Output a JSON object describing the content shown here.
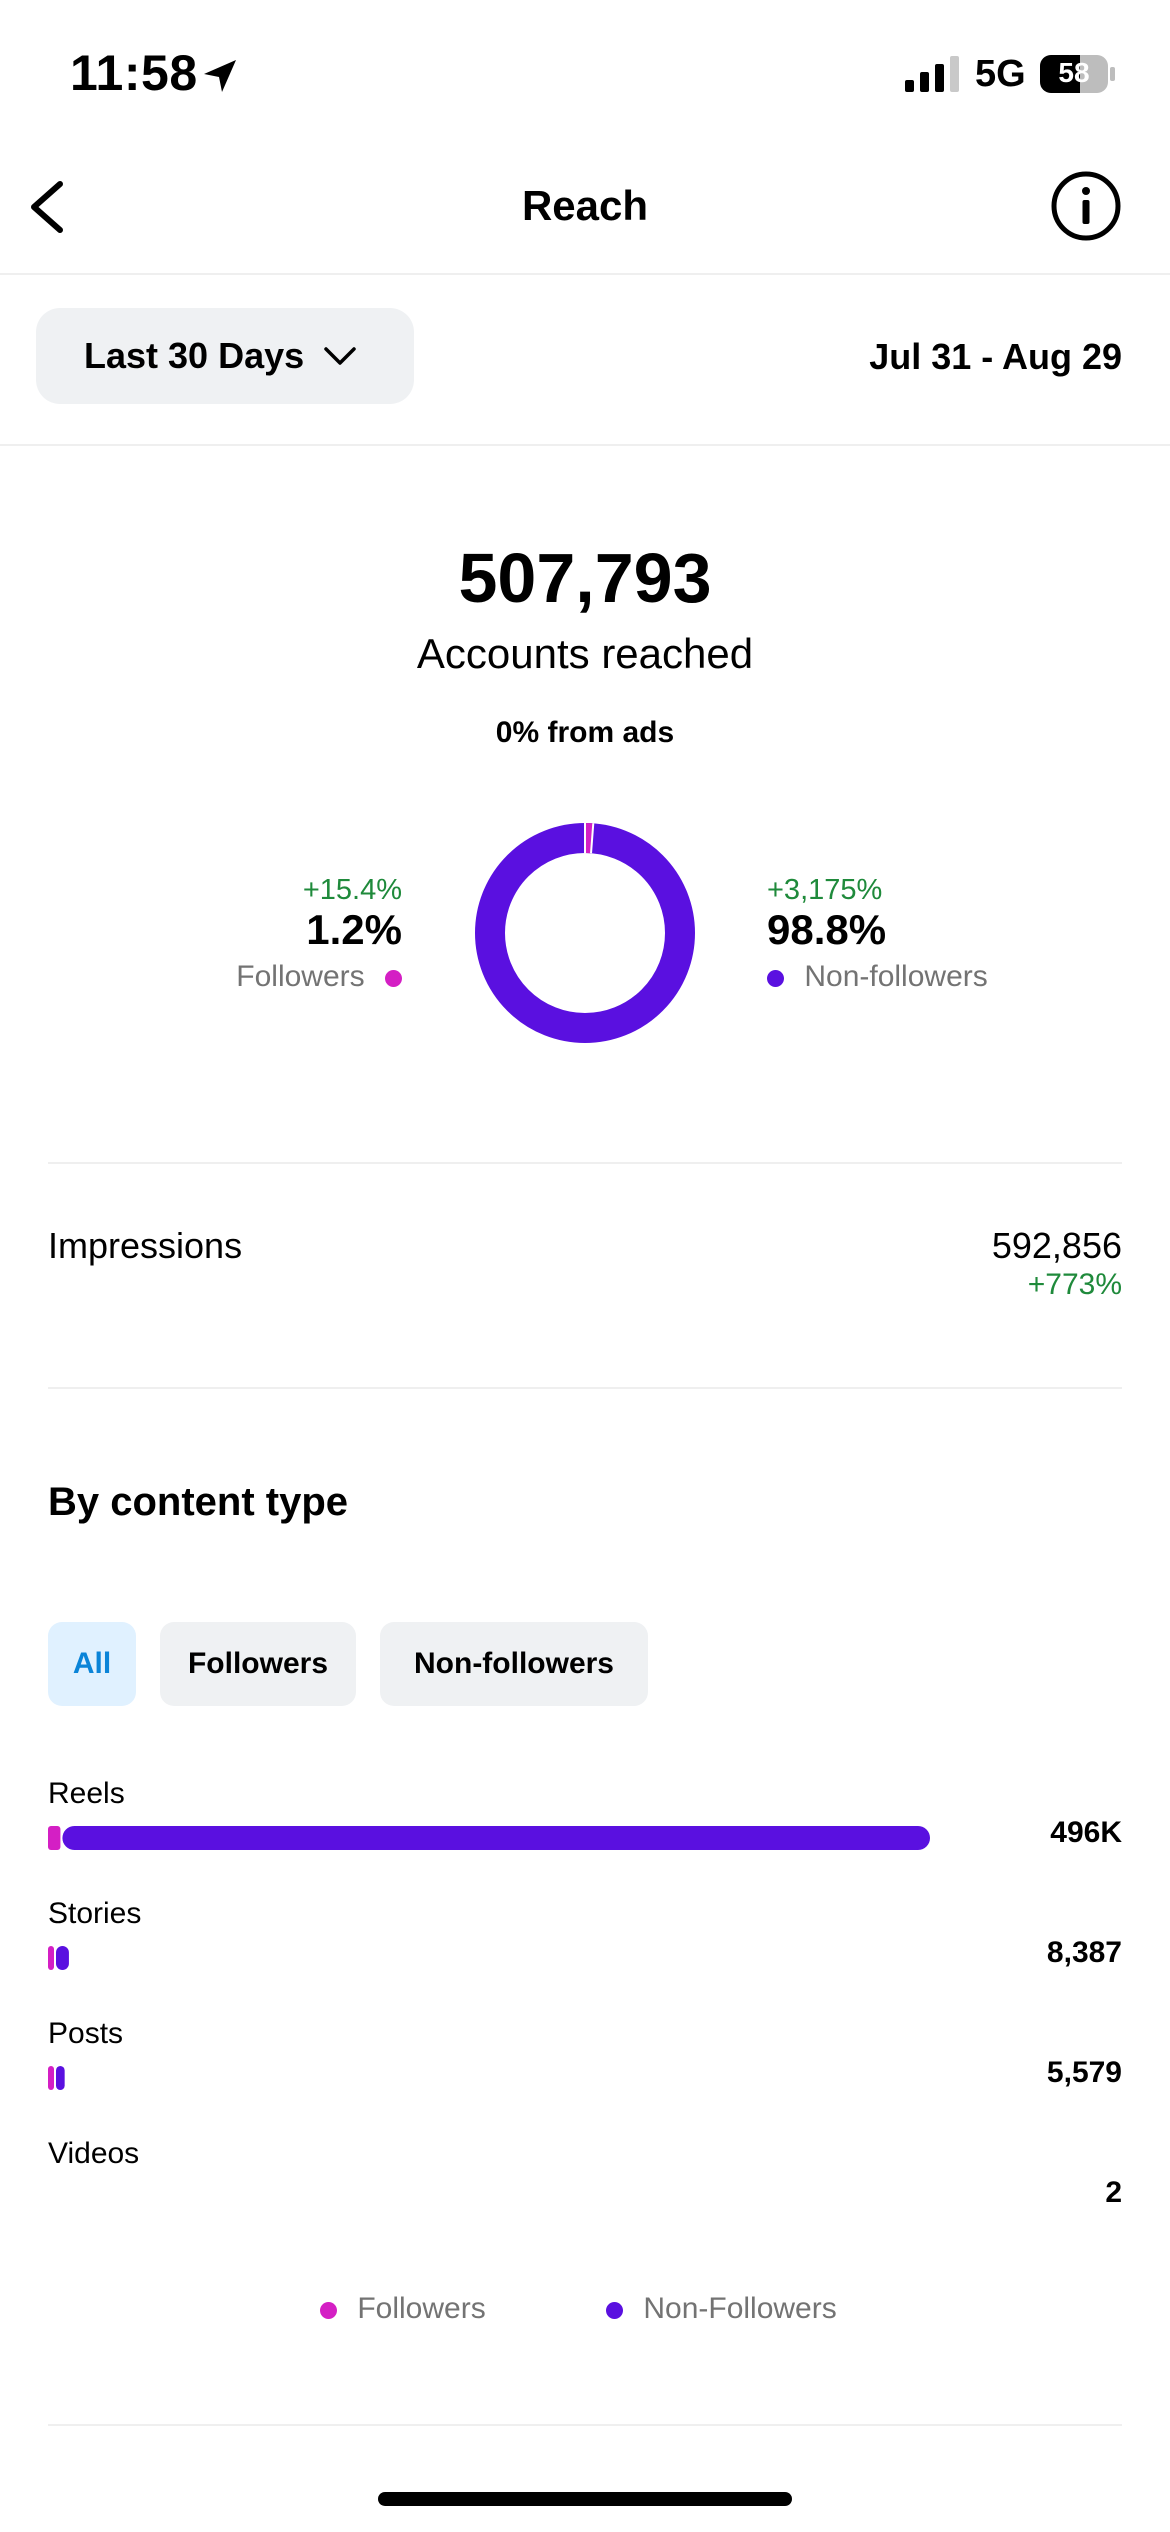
{
  "status_bar": {
    "time": "11:58",
    "network": "5G",
    "battery": "58"
  },
  "header": {
    "title": "Reach"
  },
  "range": {
    "label": "Last 30 Days",
    "dates": "Jul 31 - Aug 29"
  },
  "summary": {
    "total": "507,793",
    "total_label": "Accounts reached",
    "ads": "0% from ads",
    "followers": {
      "change": "+15.4%",
      "pct": "1.2%",
      "label": "Followers"
    },
    "non_followers": {
      "change": "+3,175%",
      "pct": "98.8%",
      "label": "Non-followers"
    }
  },
  "impressions": {
    "label": "Impressions",
    "value": "592,856",
    "change": "+773%"
  },
  "content_type": {
    "title": "By content type",
    "chips": [
      {
        "label": "All",
        "selected": true
      },
      {
        "label": "Followers",
        "selected": false
      },
      {
        "label": "Non-followers",
        "selected": false
      }
    ],
    "rows": [
      {
        "label": "Reels",
        "value": "496K"
      },
      {
        "label": "Stories",
        "value": "8,387"
      },
      {
        "label": "Posts",
        "value": "5,579"
      },
      {
        "label": "Videos",
        "value": "2"
      }
    ]
  },
  "legend": {
    "followers": "Followers",
    "non_followers": "Non-Followers"
  },
  "colors": {
    "followers": "#d41fc4",
    "non_followers": "#5a10e0",
    "positive": "#1f8a3b"
  },
  "chart_data": {
    "type": "bar",
    "categories": [
      "Reels",
      "Stories",
      "Posts",
      "Videos"
    ],
    "series": [
      {
        "name": "Followers",
        "values": [
          7000,
          1100,
          700,
          0
        ]
      },
      {
        "name": "Non-Followers",
        "values": [
          489000,
          7287,
          4879,
          2
        ]
      }
    ],
    "donut": {
      "followers_pct": 1.2,
      "non_followers_pct": 98.8
    }
  }
}
